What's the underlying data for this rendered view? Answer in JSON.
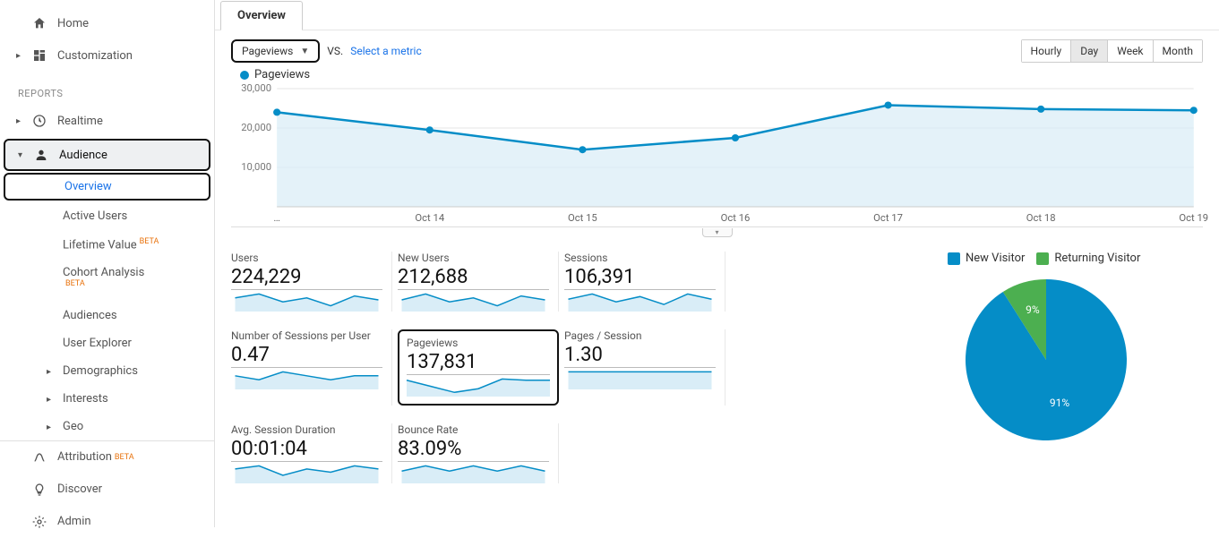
{
  "sidebar": {
    "home": "Home",
    "customization": "Customization",
    "reports_label": "REPORTS",
    "realtime": "Realtime",
    "audience": "Audience",
    "audience_children": {
      "overview": "Overview",
      "active_users": "Active Users",
      "lifetime_value": "Lifetime Value",
      "cohort": "Cohort Analysis",
      "audiences": "Audiences",
      "user_explorer": "User Explorer",
      "demographics": "Demographics",
      "interests": "Interests",
      "geo": "Geo"
    },
    "attribution": "Attribution",
    "discover": "Discover",
    "admin": "Admin",
    "beta_label": "BETA"
  },
  "tabs": {
    "overview": "Overview"
  },
  "controls": {
    "metric_selected": "Pageviews",
    "vs_label": "VS.",
    "select_metric": "Select a metric",
    "granularity": {
      "hourly": "Hourly",
      "day": "Day",
      "week": "Week",
      "month": "Month",
      "selected": "Day"
    }
  },
  "chart": {
    "legend_label": "Pageviews",
    "type": "line",
    "y_ticks": [
      10000,
      20000,
      30000
    ],
    "y_tick_labels": [
      "10,000",
      "20,000",
      "30,000"
    ],
    "ylim": [
      0,
      30000
    ],
    "x_labels": [
      "…",
      "Oct 14",
      "Oct 15",
      "Oct 16",
      "Oct 17",
      "Oct 18",
      "Oct 19"
    ],
    "values": [
      24000,
      19500,
      14500,
      17500,
      25800,
      24800,
      24500
    ],
    "line_color": "#058dc7",
    "area_color": "#d9edf7",
    "grid_color": "#e6e6e6",
    "background_color": "#ffffff",
    "point_radius": 4
  },
  "metrics": [
    {
      "key": "users",
      "title": "Users",
      "value": "224,229",
      "spark": [
        22,
        24,
        20,
        22,
        18,
        23,
        21
      ]
    },
    {
      "key": "new_users",
      "title": "New Users",
      "value": "212,688",
      "spark": [
        20,
        23,
        19,
        21,
        17,
        22,
        20
      ]
    },
    {
      "key": "sessions",
      "title": "Sessions",
      "value": "106,391",
      "spark": [
        19,
        21,
        18,
        20,
        17,
        21,
        19
      ]
    },
    {
      "key": "sessions_per_user",
      "title": "Number of Sessions per User",
      "value": "0.47",
      "spark": [
        20,
        19,
        21,
        20,
        19,
        20,
        20
      ]
    },
    {
      "key": "pageviews",
      "title": "Pageviews",
      "value": "137,831",
      "highlight": true,
      "spark": [
        24,
        19,
        14,
        17,
        25,
        24,
        24
      ]
    },
    {
      "key": "pages_per_session",
      "title": "Pages / Session",
      "value": "1.30",
      "spark": [
        20,
        20,
        20,
        20,
        20,
        20,
        20
      ]
    },
    {
      "key": "avg_session_duration",
      "title": "Avg. Session Duration",
      "value": "00:01:04",
      "spark": [
        21,
        22,
        19,
        21,
        20,
        22,
        21
      ]
    },
    {
      "key": "bounce_rate",
      "title": "Bounce Rate",
      "value": "83.09%",
      "spark": [
        20,
        21,
        20,
        21,
        20,
        21,
        20
      ]
    }
  ],
  "pie": {
    "type": "pie",
    "legend": [
      {
        "label": "New Visitor",
        "color": "#058dc7"
      },
      {
        "label": "Returning Visitor",
        "color": "#4caf50"
      }
    ],
    "slices": [
      {
        "label": "91%",
        "value": 91,
        "color": "#058dc7"
      },
      {
        "label": "9%",
        "value": 9,
        "color": "#4caf50"
      }
    ],
    "background_color": "#ffffff",
    "label_color": "#ffffff"
  }
}
